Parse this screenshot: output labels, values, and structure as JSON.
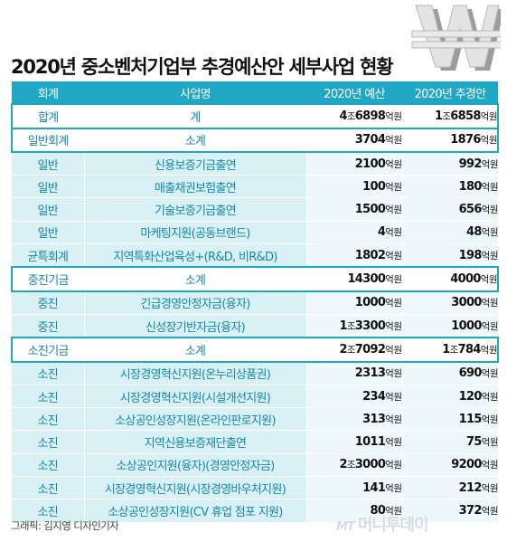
{
  "title": "2020년 중소벤처기업부 추경예산안 세부사업 현황",
  "header": {
    "col1": "회계",
    "col2": "사업명",
    "col3": "2020년 예산",
    "col4": "2020년 추경안"
  },
  "rows": [
    {
      "type": "sum",
      "cat": "합계",
      "name": "계",
      "budget_jo": "4",
      "budget_rest": "6898",
      "revised_jo": "1",
      "revised_rest": "6858"
    },
    {
      "type": "sum",
      "cat": "일반회계",
      "name": "소계",
      "budget_jo": "",
      "budget_rest": "3704",
      "revised_jo": "",
      "revised_rest": "1876"
    },
    {
      "type": "item",
      "cat": "일반",
      "name": "신용보증기금출연",
      "budget_jo": "",
      "budget_rest": "2100",
      "revised_jo": "",
      "revised_rest": "992"
    },
    {
      "type": "item",
      "cat": "일반",
      "name": "매출채권보험출연",
      "budget_jo": "",
      "budget_rest": "100",
      "revised_jo": "",
      "revised_rest": "180"
    },
    {
      "type": "item",
      "cat": "일반",
      "name": "기술보증기금출연",
      "budget_jo": "",
      "budget_rest": "1500",
      "revised_jo": "",
      "revised_rest": "656"
    },
    {
      "type": "item",
      "cat": "일반",
      "name": "마케팅지원(공동브랜드)",
      "budget_jo": "",
      "budget_rest": "4",
      "revised_jo": "",
      "revised_rest": "48"
    },
    {
      "type": "item",
      "cat": "균특회계",
      "name": "지역특화산업육성+(R&D, 비R&D)",
      "budget_jo": "",
      "budget_rest": "1802",
      "revised_jo": "",
      "revised_rest": "198"
    },
    {
      "type": "sum",
      "cat": "중진기금",
      "name": "소계",
      "budget_jo": "",
      "budget_rest": "14300",
      "revised_jo": "",
      "revised_rest": "4000"
    },
    {
      "type": "item",
      "cat": "중진",
      "name": "긴급경영안정자금(융자)",
      "budget_jo": "",
      "budget_rest": "1000",
      "revised_jo": "",
      "revised_rest": "3000"
    },
    {
      "type": "item",
      "cat": "중진",
      "name": "신성장기반자금(융자)",
      "budget_jo": "1",
      "budget_rest": "3300",
      "revised_jo": "",
      "revised_rest": "1000"
    },
    {
      "type": "sum",
      "cat": "소진기금",
      "name": "소계",
      "budget_jo": "2",
      "budget_rest": "7092",
      "revised_jo": "1",
      "revised_rest": "784"
    },
    {
      "type": "item",
      "cat": "소진",
      "name": "시장경영혁신지원(온누리상품권)",
      "budget_jo": "",
      "budget_rest": "2313",
      "revised_jo": "",
      "revised_rest": "690"
    },
    {
      "type": "item",
      "cat": "소진",
      "name": "시장경영혁신지원(시설개선지원)",
      "budget_jo": "",
      "budget_rest": "234",
      "revised_jo": "",
      "revised_rest": "120"
    },
    {
      "type": "item",
      "cat": "소진",
      "name": "소상공인성장지원(온라인판로지원)",
      "budget_jo": "",
      "budget_rest": "313",
      "revised_jo": "",
      "revised_rest": "115"
    },
    {
      "type": "item",
      "cat": "소진",
      "name": "지역신용보증재단출연",
      "budget_jo": "",
      "budget_rest": "1011",
      "revised_jo": "",
      "revised_rest": "75"
    },
    {
      "type": "item",
      "cat": "소진",
      "name": "소상공인지원(융자)(경영안정자금)",
      "budget_jo": "2",
      "budget_rest": "3000",
      "revised_jo": "",
      "revised_rest": "9200"
    },
    {
      "type": "item",
      "cat": "소진",
      "name": "시장경영혁신지원(시장경영바우처지원)",
      "budget_jo": "",
      "budget_rest": "141",
      "revised_jo": "",
      "revised_rest": "212"
    },
    {
      "type": "item",
      "cat": "소진",
      "name": "소상공인성장지원(CV 휴업 점포 지원)",
      "budget_jo": "",
      "budget_rest": "80",
      "revised_jo": "",
      "revised_rest": "372"
    }
  ],
  "units": {
    "jo": "조",
    "eok": "억원"
  },
  "credit": "그래픽: 김지영 디자인기자",
  "brand": {
    "mt": "MT",
    "name": "머니투데이"
  },
  "colors": {
    "header": "#1fa7c4",
    "light_cell": "#d9f0f5",
    "accent_text": "#1589a6"
  },
  "icons": {
    "logo": "won-sign-icon"
  }
}
